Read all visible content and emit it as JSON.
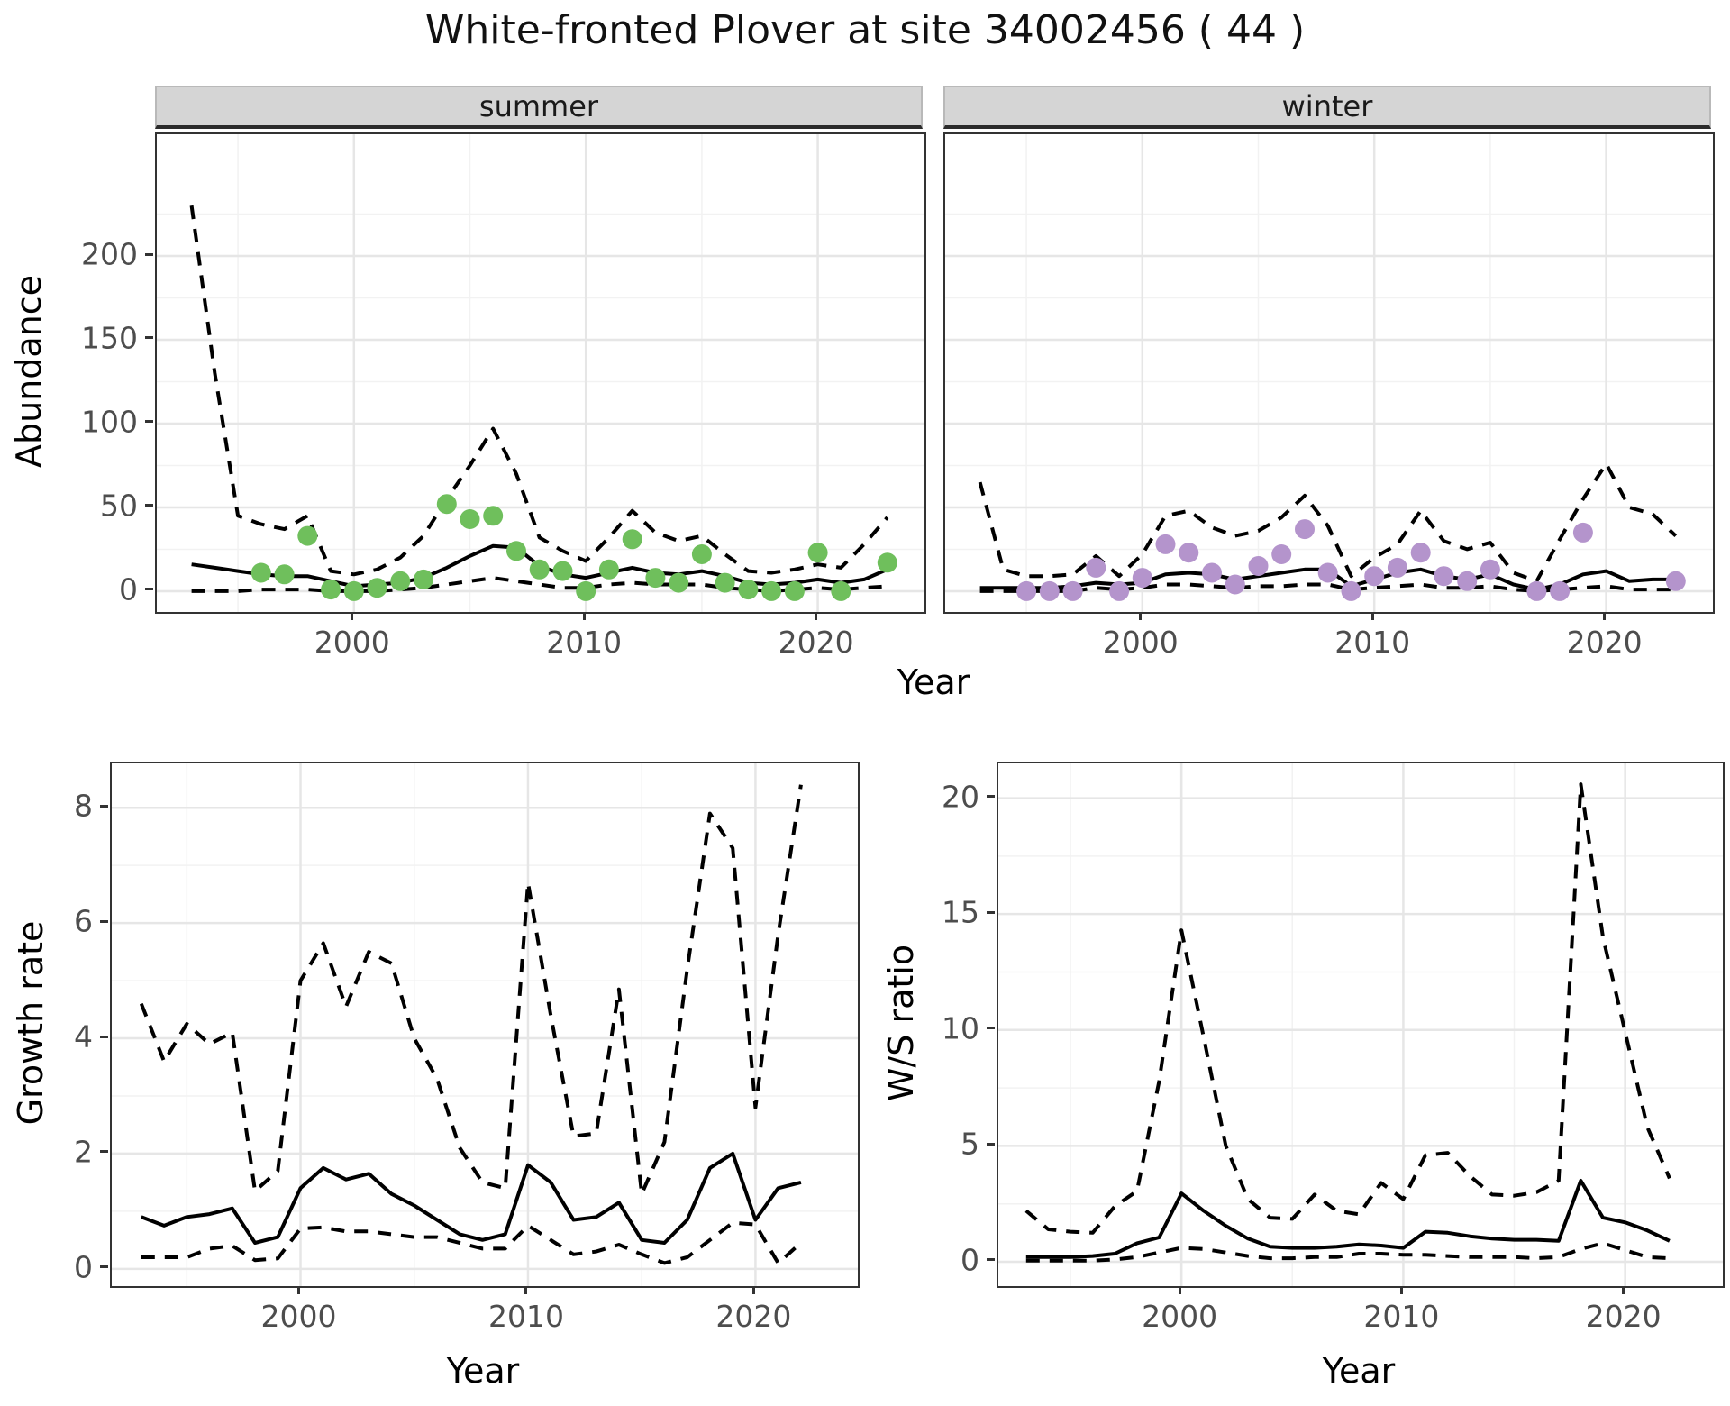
{
  "page": {
    "title": "White-fronted Plover at site 34002456 ( 44 )"
  },
  "facets": {
    "summer_label": "summer",
    "winter_label": "winter"
  },
  "axes": {
    "abundance_label": "Abundance",
    "year_label_top": "Year",
    "year_label_growth": "Year",
    "year_label_ws": "Year",
    "growth_label": "Growth rate",
    "ws_label": "W/S ratio"
  },
  "colors": {
    "summer_point": "#6fbf5c",
    "winter_point": "#b494cc",
    "line": "#000000",
    "grid_major": "#e6e6e6",
    "grid_minor": "#f2f2f2",
    "panel_border": "#333333",
    "tick_text": "#4d4d4d"
  },
  "chart_data": [
    {
      "id": "abundance-summer",
      "type": "line+scatter",
      "facet": "summer",
      "ylabel": "Abundance",
      "xlabel": "Year",
      "xlim": [
        1991.5,
        2024.6
      ],
      "ylim": [
        -12.4,
        272.6
      ],
      "x_ticks": [
        2000,
        2010,
        2020
      ],
      "x_minor": [
        1995,
        2005,
        2015
      ],
      "y_ticks": [
        0,
        50,
        100,
        150,
        200
      ],
      "y_minor": [
        25,
        75,
        125,
        175,
        225
      ],
      "years": [
        1993,
        1994,
        1995,
        1996,
        1997,
        1998,
        1999,
        2000,
        2001,
        2002,
        2003,
        2004,
        2005,
        2006,
        2007,
        2008,
        2009,
        2010,
        2011,
        2012,
        2013,
        2014,
        2015,
        2016,
        2017,
        2018,
        2019,
        2020,
        2021,
        2022,
        2023
      ],
      "series": [
        {
          "name": "fitted",
          "style": "solid",
          "values": [
            16,
            14,
            12,
            10,
            9,
            9,
            6,
            3,
            4,
            5,
            8,
            14,
            21,
            27,
            26,
            15,
            10,
            8,
            11,
            14,
            11,
            10,
            12,
            9,
            5,
            4,
            5,
            7,
            5,
            7,
            13
          ]
        },
        {
          "name": "upper_ci",
          "style": "dashed",
          "values": [
            230,
            130,
            45,
            40,
            37,
            45,
            12,
            10,
            13,
            20,
            33,
            55,
            75,
            97,
            70,
            32,
            24,
            18,
            32,
            48,
            35,
            30,
            33,
            22,
            12,
            11,
            13,
            16,
            14,
            28,
            44
          ]
        },
        {
          "name": "lower_ci",
          "style": "dashed",
          "values": [
            0,
            0,
            0,
            1,
            1,
            1,
            0,
            0,
            0,
            1,
            2,
            4,
            6,
            8,
            6,
            4,
            2,
            2,
            4,
            5,
            4,
            4,
            4,
            2,
            1,
            0,
            1,
            2,
            1,
            2,
            3
          ]
        }
      ],
      "points": {
        "name": "observed_summer",
        "color_key": "summer_point",
        "values": [
          null,
          null,
          null,
          11,
          10,
          33,
          1,
          0,
          2,
          6,
          7,
          52,
          43,
          45,
          24,
          13,
          12,
          0,
          13,
          31,
          8,
          5,
          22,
          5,
          1,
          0,
          0,
          23,
          0,
          null,
          17
        ]
      }
    },
    {
      "id": "abundance-winter",
      "type": "line+scatter",
      "facet": "winter",
      "ylabel": "Abundance",
      "xlabel": "Year",
      "xlim": [
        1991.5,
        2024.6
      ],
      "ylim": [
        -12.4,
        272.6
      ],
      "x_ticks": [
        2000,
        2010,
        2020
      ],
      "x_minor": [
        1995,
        2005,
        2015
      ],
      "y_ticks": [
        0,
        50,
        100,
        150,
        200
      ],
      "y_minor": [
        25,
        75,
        125,
        175,
        225
      ],
      "years": [
        1993,
        1994,
        1995,
        1996,
        1997,
        1998,
        1999,
        2000,
        2001,
        2002,
        2003,
        2004,
        2005,
        2006,
        2007,
        2008,
        2009,
        2010,
        2011,
        2012,
        2013,
        2014,
        2015,
        2016,
        2017,
        2018,
        2019,
        2020,
        2021,
        2022,
        2023
      ],
      "series": [
        {
          "name": "fitted",
          "style": "solid",
          "values": [
            2,
            2,
            2,
            2,
            3,
            5,
            4,
            5,
            10,
            11,
            10,
            7,
            9,
            11,
            13,
            13,
            3,
            7,
            11,
            13,
            9,
            7,
            10,
            4,
            1,
            4,
            10,
            12,
            6,
            7,
            7
          ]
        },
        {
          "name": "upper_ci",
          "style": "dashed",
          "values": [
            65,
            13,
            9,
            9,
            10,
            21,
            9,
            22,
            45,
            48,
            38,
            33,
            36,
            44,
            57,
            39,
            9,
            20,
            28,
            48,
            30,
            25,
            29,
            11,
            6,
            31,
            55,
            76,
            50,
            46,
            33
          ]
        },
        {
          "name": "lower_ci",
          "style": "dashed",
          "values": [
            0,
            0,
            0,
            0,
            0,
            2,
            1,
            2,
            4,
            4,
            3,
            2,
            3,
            3,
            4,
            4,
            1,
            2,
            3,
            4,
            2,
            2,
            3,
            1,
            0,
            1,
            2,
            3,
            1,
            1,
            1
          ]
        }
      ],
      "points": {
        "name": "observed_winter",
        "color_key": "winter_point",
        "values": [
          null,
          null,
          0,
          0,
          0,
          14,
          0,
          8,
          28,
          23,
          11,
          4,
          15,
          22,
          37,
          11,
          0,
          9,
          14,
          23,
          9,
          6,
          13,
          null,
          0,
          0,
          35,
          null,
          null,
          null,
          6
        ]
      }
    },
    {
      "id": "growth-rate",
      "type": "line",
      "ylabel": "Growth rate",
      "xlabel": "Year",
      "xlim": [
        1991.7,
        2024.5
      ],
      "ylim": [
        -0.3,
        8.77
      ],
      "x_ticks": [
        2000,
        2010,
        2020
      ],
      "x_minor": [
        1995,
        2005,
        2015
      ],
      "y_ticks": [
        0,
        2,
        4,
        6,
        8
      ],
      "y_minor": [
        1,
        3,
        5,
        7
      ],
      "years": [
        1993,
        1994,
        1995,
        1996,
        1997,
        1998,
        1999,
        2000,
        2001,
        2002,
        2003,
        2004,
        2005,
        2006,
        2007,
        2008,
        2009,
        2010,
        2011,
        2012,
        2013,
        2014,
        2015,
        2016,
        2017,
        2018,
        2019,
        2020,
        2021,
        2022
      ],
      "series": [
        {
          "name": "fitted",
          "style": "solid",
          "values": [
            0.9,
            0.75,
            0.9,
            0.95,
            1.05,
            0.45,
            0.55,
            1.4,
            1.75,
            1.55,
            1.65,
            1.3,
            1.1,
            0.85,
            0.6,
            0.5,
            0.6,
            1.8,
            1.5,
            0.85,
            0.9,
            1.15,
            0.5,
            0.45,
            0.85,
            1.75,
            2.0,
            0.85,
            1.4,
            1.5
          ]
        },
        {
          "name": "upper_ci",
          "style": "dashed",
          "values": [
            4.6,
            3.6,
            4.25,
            3.9,
            4.1,
            1.35,
            1.7,
            5.0,
            5.65,
            4.55,
            5.5,
            5.3,
            4.0,
            3.3,
            2.1,
            1.5,
            1.4,
            6.7,
            4.4,
            2.3,
            2.35,
            4.85,
            1.3,
            2.2,
            5.2,
            7.9,
            7.3,
            2.8,
            5.8,
            8.4
          ]
        },
        {
          "name": "lower_ci",
          "style": "dashed",
          "values": [
            0.2,
            0.2,
            0.2,
            0.35,
            0.4,
            0.15,
            0.18,
            0.7,
            0.72,
            0.65,
            0.65,
            0.6,
            0.55,
            0.55,
            0.45,
            0.35,
            0.35,
            0.75,
            0.5,
            0.25,
            0.3,
            0.42,
            0.25,
            0.1,
            0.2,
            0.5,
            0.8,
            0.77,
            0.1,
            0.45
          ]
        }
      ]
    },
    {
      "id": "ws-ratio",
      "type": "line",
      "ylabel": "W/S ratio",
      "xlabel": "Year",
      "xlim": [
        1991.75,
        2024.4
      ],
      "ylim": [
        -1.05,
        21.5
      ],
      "x_ticks": [
        2000,
        2010,
        2020
      ],
      "x_minor": [
        1995,
        2005,
        2015
      ],
      "y_ticks": [
        0,
        5,
        10,
        15,
        20
      ],
      "y_minor": [
        2.5,
        7.5,
        12.5,
        17.5
      ],
      "years": [
        1993,
        1994,
        1995,
        1996,
        1997,
        1998,
        1999,
        2000,
        2001,
        2002,
        2003,
        2004,
        2005,
        2006,
        2007,
        2008,
        2009,
        2010,
        2011,
        2012,
        2013,
        2014,
        2015,
        2016,
        2017,
        2018,
        2019,
        2020,
        2021,
        2022
      ],
      "series": [
        {
          "name": "fitted",
          "style": "solid",
          "values": [
            0.2,
            0.2,
            0.2,
            0.25,
            0.35,
            0.8,
            1.05,
            2.95,
            2.2,
            1.55,
            1.0,
            0.65,
            0.6,
            0.6,
            0.65,
            0.75,
            0.7,
            0.6,
            1.3,
            1.25,
            1.1,
            1.0,
            0.95,
            0.95,
            0.9,
            3.5,
            1.9,
            1.7,
            1.35,
            0.9
          ]
        },
        {
          "name": "upper_ci",
          "style": "dashed",
          "values": [
            2.2,
            1.4,
            1.3,
            1.25,
            2.4,
            3.05,
            7.8,
            14.3,
            9.7,
            5.0,
            2.7,
            1.9,
            1.85,
            2.9,
            2.2,
            2.05,
            3.4,
            2.7,
            4.6,
            4.7,
            3.7,
            2.9,
            2.85,
            3.0,
            3.5,
            20.6,
            14.0,
            9.9,
            5.8,
            3.6
          ]
        },
        {
          "name": "lower_ci",
          "style": "dashed",
          "values": [
            0.05,
            0.05,
            0.05,
            0.05,
            0.1,
            0.2,
            0.4,
            0.6,
            0.55,
            0.4,
            0.25,
            0.15,
            0.15,
            0.2,
            0.2,
            0.35,
            0.35,
            0.3,
            0.3,
            0.25,
            0.2,
            0.2,
            0.2,
            0.15,
            0.2,
            0.55,
            0.8,
            0.5,
            0.2,
            0.15
          ]
        }
      ]
    }
  ]
}
